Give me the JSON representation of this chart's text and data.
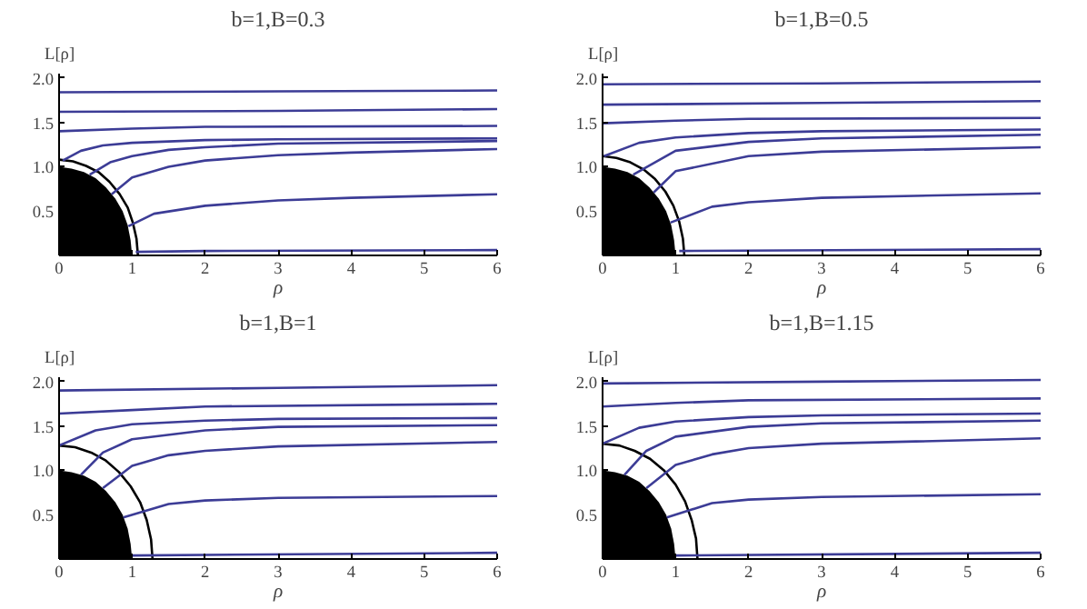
{
  "chart_data": [
    {
      "type": "line",
      "title": "b=1,B=0.3",
      "xlabel": "ρ",
      "ylabel": "L[ρ]",
      "xlim": [
        0,
        6
      ],
      "ylim": [
        0,
        2.05
      ],
      "xticks": [
        0,
        1,
        2,
        3,
        4,
        5,
        6
      ],
      "yticks": [
        {
          "value": 0,
          "label": null
        },
        {
          "value": 0.5,
          "label": "0.5"
        },
        {
          "value": 1,
          "label": "1.0"
        },
        {
          "value": 1.5,
          "label": "1.5"
        },
        {
          "value": 2,
          "label": "2.0"
        }
      ],
      "series": [
        {
          "type": "area",
          "color": "#000000",
          "x": [
            0,
            0.17,
            0.34,
            0.5,
            0.64,
            0.77,
            0.87,
            0.94,
            0.98,
            1
          ],
          "values": [
            1,
            0.98,
            0.94,
            0.87,
            0.77,
            0.64,
            0.5,
            0.34,
            0.17,
            0
          ]
        },
        {
          "color": "#000000",
          "x": [
            0,
            0.19,
            0.37,
            0.54,
            0.69,
            0.83,
            0.94,
            1.01,
            1.06,
            1.08
          ],
          "values": [
            1.08,
            1.06,
            1.01,
            0.94,
            0.83,
            0.69,
            0.54,
            0.37,
            0.19,
            0
          ]
        },
        {
          "color": "#3c3c96",
          "x": [
            0,
            3,
            6
          ],
          "values": [
            1.84,
            1.85,
            1.86
          ]
        },
        {
          "color": "#3c3c96",
          "x": [
            0,
            3,
            6
          ],
          "values": [
            1.62,
            1.63,
            1.65
          ]
        },
        {
          "color": "#3c3c96",
          "x": [
            0,
            1,
            2,
            6
          ],
          "values": [
            1.4,
            1.43,
            1.45,
            1.46
          ]
        },
        {
          "color": "#3c3c96",
          "x": [
            0.05,
            0.3,
            0.6,
            1,
            2,
            3,
            6
          ],
          "values": [
            1.07,
            1.18,
            1.24,
            1.27,
            1.3,
            1.31,
            1.32
          ]
        },
        {
          "color": "#3c3c96",
          "x": [
            0.42,
            0.7,
            1,
            1.5,
            2,
            3,
            6
          ],
          "values": [
            0.91,
            1.05,
            1.12,
            1.19,
            1.22,
            1.26,
            1.29
          ]
        },
        {
          "color": "#3c3c96",
          "x": [
            0.72,
            1,
            1.5,
            2,
            3,
            4,
            6
          ],
          "values": [
            0.69,
            0.88,
            1.0,
            1.07,
            1.13,
            1.16,
            1.2
          ]
        },
        {
          "color": "#3c3c96",
          "x": [
            0.95,
            1.3,
            2,
            3,
            4,
            6
          ],
          "values": [
            0.33,
            0.47,
            0.56,
            0.62,
            0.65,
            0.69
          ]
        },
        {
          "color": "#3c3c96",
          "x": [
            1.05,
            2,
            6
          ],
          "values": [
            0.04,
            0.05,
            0.06
          ]
        }
      ]
    },
    {
      "type": "line",
      "title": "b=1,B=0.5",
      "xlabel": "ρ",
      "ylabel": "L[ρ]",
      "xlim": [
        0,
        6
      ],
      "ylim": [
        0,
        2.05
      ],
      "xticks": [
        0,
        1,
        2,
        3,
        4,
        5,
        6
      ],
      "yticks": [
        {
          "value": 0,
          "label": null
        },
        {
          "value": 0.5,
          "label": "0.5"
        },
        {
          "value": 1,
          "label": "1.0"
        },
        {
          "value": 1.5,
          "label": "1.5"
        },
        {
          "value": 2,
          "label": "2.0"
        }
      ],
      "series": [
        {
          "type": "area",
          "color": "#000000",
          "x": [
            0,
            0.17,
            0.34,
            0.5,
            0.64,
            0.77,
            0.87,
            0.94,
            0.98,
            1
          ],
          "values": [
            1,
            0.98,
            0.94,
            0.87,
            0.77,
            0.64,
            0.5,
            0.34,
            0.17,
            0
          ]
        },
        {
          "color": "#000000",
          "x": [
            0,
            0.19,
            0.38,
            0.56,
            0.72,
            0.86,
            0.97,
            1.05,
            1.1,
            1.12
          ],
          "values": [
            1.12,
            1.1,
            1.05,
            0.97,
            0.86,
            0.72,
            0.56,
            0.38,
            0.19,
            0
          ]
        },
        {
          "color": "#3c3c96",
          "x": [
            0,
            3,
            6
          ],
          "values": [
            1.93,
            1.94,
            1.96
          ]
        },
        {
          "color": "#3c3c96",
          "x": [
            0,
            3,
            6
          ],
          "values": [
            1.7,
            1.72,
            1.74
          ]
        },
        {
          "color": "#3c3c96",
          "x": [
            0,
            1,
            2,
            6
          ],
          "values": [
            1.49,
            1.52,
            1.54,
            1.55
          ]
        },
        {
          "color": "#3c3c96",
          "x": [
            0.02,
            0.5,
            1,
            2,
            3,
            6
          ],
          "values": [
            1.12,
            1.27,
            1.33,
            1.38,
            1.4,
            1.42
          ]
        },
        {
          "color": "#3c3c96",
          "x": [
            0.42,
            1,
            2,
            3,
            6
          ],
          "values": [
            0.91,
            1.18,
            1.28,
            1.32,
            1.36
          ]
        },
        {
          "color": "#3c3c96",
          "x": [
            0.7,
            1,
            2,
            3,
            6
          ],
          "values": [
            0.71,
            0.95,
            1.12,
            1.17,
            1.22
          ]
        },
        {
          "color": "#3c3c96",
          "x": [
            0.93,
            1.5,
            2,
            3,
            6
          ],
          "values": [
            0.37,
            0.55,
            0.6,
            0.65,
            0.7
          ]
        },
        {
          "color": "#3c3c96",
          "x": [
            1.05,
            6
          ],
          "values": [
            0.05,
            0.07
          ]
        }
      ]
    },
    {
      "type": "line",
      "title": "b=1,B=1",
      "xlabel": "ρ",
      "ylabel": "L[ρ]",
      "xlim": [
        0,
        6
      ],
      "ylim": [
        0,
        2.05
      ],
      "xticks": [
        0,
        1,
        2,
        3,
        4,
        5,
        6
      ],
      "yticks": [
        {
          "value": 0,
          "label": null
        },
        {
          "value": 0.5,
          "label": "0.5"
        },
        {
          "value": 1,
          "label": "1.0"
        },
        {
          "value": 1.5,
          "label": "1.5"
        },
        {
          "value": 2,
          "label": "2.0"
        }
      ],
      "series": [
        {
          "type": "area",
          "color": "#000000",
          "x": [
            0,
            0.17,
            0.34,
            0.5,
            0.64,
            0.77,
            0.87,
            0.94,
            0.98,
            1
          ],
          "values": [
            1,
            0.98,
            0.94,
            0.87,
            0.77,
            0.64,
            0.5,
            0.34,
            0.17,
            0
          ]
        },
        {
          "color": "#000000",
          "x": [
            0,
            0.22,
            0.44,
            0.64,
            0.82,
            0.98,
            1.11,
            1.2,
            1.26,
            1.28
          ],
          "values": [
            1.28,
            1.26,
            1.2,
            1.11,
            0.98,
            0.82,
            0.64,
            0.44,
            0.22,
            0
          ]
        },
        {
          "color": "#3c3c96",
          "x": [
            0,
            3,
            6
          ],
          "values": [
            1.9,
            1.93,
            1.96
          ]
        },
        {
          "color": "#3c3c96",
          "x": [
            0,
            1,
            2,
            6
          ],
          "values": [
            1.64,
            1.68,
            1.72,
            1.75
          ]
        },
        {
          "color": "#3c3c96",
          "x": [
            0,
            0.5,
            1,
            2,
            3,
            6
          ],
          "values": [
            1.28,
            1.45,
            1.52,
            1.56,
            1.58,
            1.59
          ]
        },
        {
          "color": "#3c3c96",
          "x": [
            0.3,
            0.6,
            1,
            2,
            3,
            6
          ],
          "values": [
            0.95,
            1.2,
            1.35,
            1.45,
            1.49,
            1.51
          ]
        },
        {
          "color": "#3c3c96",
          "x": [
            0.6,
            1,
            1.5,
            2,
            3,
            6
          ],
          "values": [
            0.8,
            1.05,
            1.17,
            1.22,
            1.27,
            1.32
          ]
        },
        {
          "color": "#3c3c96",
          "x": [
            0.88,
            1.5,
            2,
            3,
            6
          ],
          "values": [
            0.47,
            0.62,
            0.66,
            0.69,
            0.71
          ]
        },
        {
          "color": "#3c3c96",
          "x": [
            1,
            6
          ],
          "values": [
            0.04,
            0.07
          ]
        }
      ]
    },
    {
      "type": "line",
      "title": "b=1,B=1.15",
      "xlabel": "ρ",
      "ylabel": "L[ρ]",
      "xlim": [
        0,
        6
      ],
      "ylim": [
        0,
        2.05
      ],
      "xticks": [
        0,
        1,
        2,
        3,
        4,
        5,
        6
      ],
      "yticks": [
        {
          "value": 0,
          "label": null
        },
        {
          "value": 0.5,
          "label": "0.5"
        },
        {
          "value": 1,
          "label": "1.0"
        },
        {
          "value": 1.5,
          "label": "1.5"
        },
        {
          "value": 2,
          "label": "2.0"
        }
      ],
      "series": [
        {
          "type": "area",
          "color": "#000000",
          "x": [
            0,
            0.17,
            0.34,
            0.5,
            0.64,
            0.77,
            0.87,
            0.94,
            0.98,
            1
          ],
          "values": [
            1,
            0.98,
            0.94,
            0.87,
            0.77,
            0.64,
            0.5,
            0.34,
            0.17,
            0
          ]
        },
        {
          "color": "#000000",
          "x": [
            0,
            0.23,
            0.44,
            0.65,
            0.84,
            1,
            1.13,
            1.22,
            1.28,
            1.3
          ],
          "values": [
            1.3,
            1.28,
            1.22,
            1.13,
            1,
            0.84,
            0.65,
            0.44,
            0.23,
            0
          ]
        },
        {
          "color": "#3c3c96",
          "x": [
            0,
            3,
            6
          ],
          "values": [
            1.98,
            2.0,
            2.02
          ]
        },
        {
          "color": "#3c3c96",
          "x": [
            0,
            1,
            2,
            6
          ],
          "values": [
            1.72,
            1.76,
            1.79,
            1.81
          ]
        },
        {
          "color": "#3c3c96",
          "x": [
            0,
            0.5,
            1,
            2,
            3,
            6
          ],
          "values": [
            1.3,
            1.48,
            1.55,
            1.6,
            1.62,
            1.64
          ]
        },
        {
          "color": "#3c3c96",
          "x": [
            0.3,
            0.6,
            1,
            2,
            3,
            6
          ],
          "values": [
            0.95,
            1.22,
            1.38,
            1.49,
            1.53,
            1.56
          ]
        },
        {
          "color": "#3c3c96",
          "x": [
            0.6,
            1,
            1.5,
            2,
            3,
            6
          ],
          "values": [
            0.8,
            1.06,
            1.18,
            1.25,
            1.3,
            1.36
          ]
        },
        {
          "color": "#3c3c96",
          "x": [
            0.88,
            1.5,
            2,
            3,
            6
          ],
          "values": [
            0.47,
            0.63,
            0.67,
            0.7,
            0.73
          ]
        },
        {
          "color": "#3c3c96",
          "x": [
            1,
            6
          ],
          "values": [
            0.04,
            0.07
          ]
        }
      ]
    }
  ]
}
